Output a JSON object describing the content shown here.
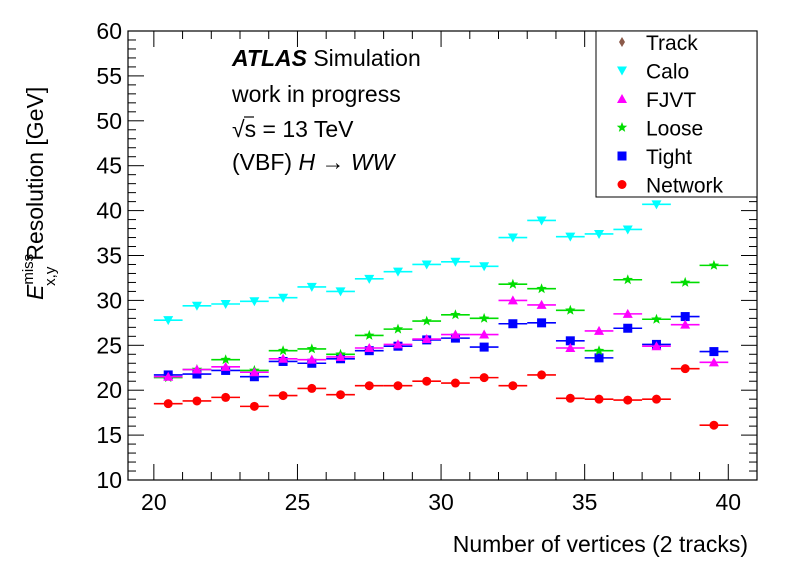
{
  "chart_data": {
    "type": "scatter",
    "title": "",
    "xlabel": "Number of vertices (2 tracks)",
    "ylabel": "Resolution [GeV]",
    "ylabel_symbol": "E",
    "ylabel_superscript": "miss",
    "ylabel_subscript": "x,y",
    "xlim": [
      19.1,
      41.0
    ],
    "ylim": [
      10,
      60
    ],
    "x_ticks": [
      20,
      25,
      30,
      35,
      40
    ],
    "x_tick_labels": [
      "20",
      "25",
      "30",
      "35",
      "40"
    ],
    "y_ticks": [
      10,
      15,
      20,
      25,
      30,
      35,
      40,
      45,
      50,
      55,
      60
    ],
    "y_tick_labels": [
      "10",
      "15",
      "20",
      "25",
      "30",
      "35",
      "40",
      "45",
      "50",
      "55",
      "60"
    ],
    "bin_half_width": 0.5,
    "x": [
      20.5,
      21.5,
      22.5,
      23.5,
      24.5,
      25.5,
      26.5,
      27.5,
      28.5,
      29.5,
      30.5,
      31.5,
      32.5,
      33.5,
      34.5,
      35.5,
      36.5,
      37.5,
      38.5,
      39.5
    ],
    "annotations": {
      "atlas": "ATLAS",
      "simulation": "Simulation",
      "status": "work in progress",
      "sqrt": "√",
      "energy": "s = 13 TeV",
      "process_prefix": "(VBF)",
      "process_h": "H",
      "process_arrow": "→",
      "process_ww": "WW"
    },
    "legend_position": "top-right",
    "series": [
      {
        "name": "Track",
        "color": "#8b5a4a",
        "marker": "diamond",
        "values": [
          null,
          null,
          null,
          null,
          null,
          null,
          null,
          null,
          null,
          null,
          null,
          null,
          null,
          null,
          null,
          null,
          null,
          null,
          null,
          null
        ]
      },
      {
        "name": "Calo",
        "color": "#00ffff",
        "marker": "triangle-down",
        "values": [
          27.8,
          29.4,
          29.6,
          29.9,
          30.3,
          31.5,
          31.0,
          32.4,
          33.2,
          34.0,
          34.3,
          33.8,
          37.0,
          38.9,
          37.1,
          37.4,
          37.9,
          40.7,
          null,
          null
        ]
      },
      {
        "name": "FJVT",
        "color": "#ff00ff",
        "marker": "triangle-up",
        "values": [
          21.5,
          22.3,
          22.6,
          22.0,
          23.5,
          23.4,
          23.7,
          24.7,
          25.1,
          25.7,
          26.2,
          26.2,
          30.0,
          29.5,
          24.7,
          26.6,
          28.5,
          24.9,
          27.3,
          23.1
        ]
      },
      {
        "name": "Loose",
        "color": "#00dd00",
        "marker": "star",
        "values": [
          21.4,
          22.3,
          23.4,
          22.2,
          24.4,
          24.6,
          24.0,
          26.1,
          26.8,
          27.7,
          28.4,
          28.0,
          31.8,
          31.3,
          28.9,
          24.4,
          32.3,
          27.9,
          32.0,
          33.9
        ]
      },
      {
        "name": "Tight",
        "color": "#0000ff",
        "marker": "square",
        "values": [
          21.7,
          21.8,
          22.2,
          21.5,
          23.2,
          23.0,
          23.5,
          24.4,
          24.9,
          25.6,
          25.8,
          24.8,
          27.4,
          27.5,
          25.5,
          23.6,
          26.9,
          25.1,
          28.2,
          24.3
        ]
      },
      {
        "name": "Network",
        "color": "#ff0000",
        "marker": "circle",
        "values": [
          18.5,
          18.8,
          19.2,
          18.2,
          19.4,
          20.2,
          19.5,
          20.5,
          20.5,
          21.0,
          20.8,
          21.4,
          20.5,
          21.7,
          19.1,
          19.0,
          18.9,
          19.0,
          22.4,
          16.1
        ]
      }
    ]
  }
}
